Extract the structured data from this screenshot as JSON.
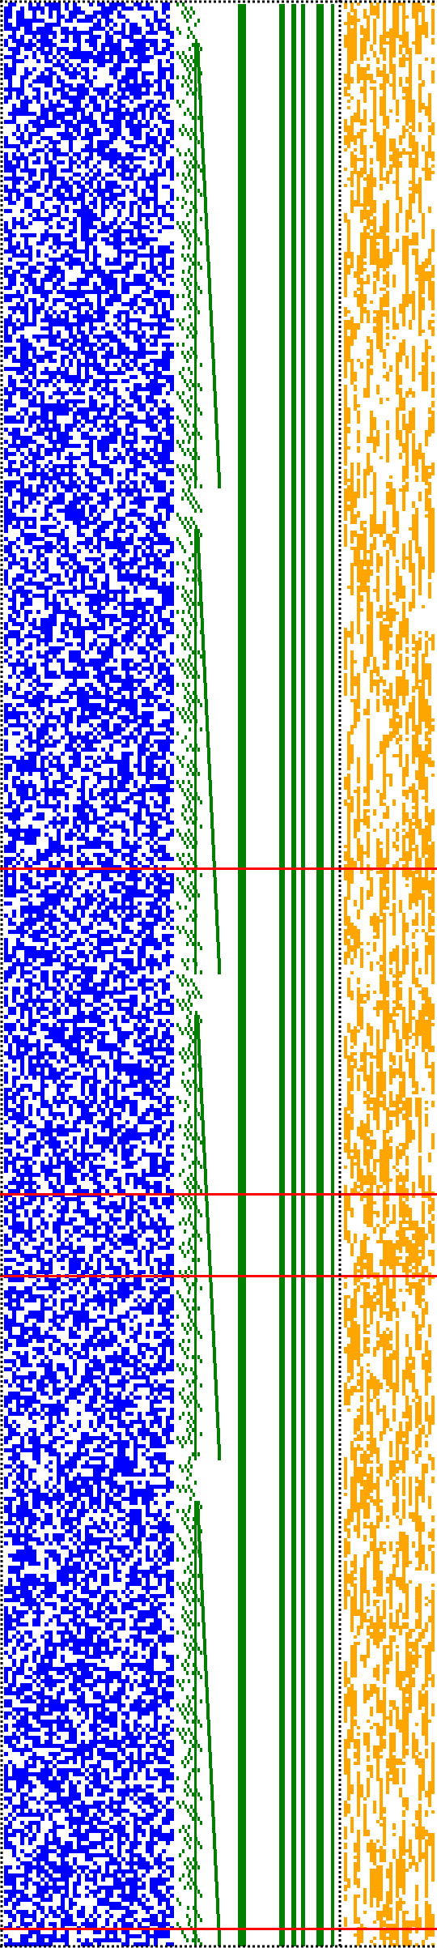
{
  "visualization": {
    "kind": "cellular-automaton-style pixel grid",
    "panels": [
      "blue-noise-field",
      "green-staircase-field",
      "orange-noise-field"
    ],
    "colors": {
      "background": "#ffffff",
      "blue": "#0000ff",
      "green": "#007f00",
      "orange": "#ffa500",
      "red": "#ff0000",
      "border": "#000000"
    },
    "blue_fill_density": 0.55,
    "orange_fill_density": 0.62,
    "green_vertical_bar_count": 6,
    "red_horizontal_line_count": 4,
    "dotted_border": true
  }
}
